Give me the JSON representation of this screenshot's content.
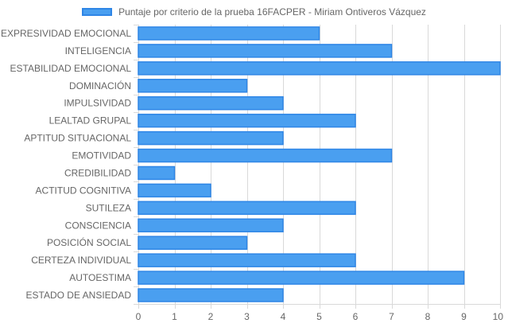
{
  "chart_data": {
    "type": "bar",
    "orientation": "horizontal",
    "legend": {
      "label": "Puntaje por criterio de la prueba 16FACPER - Miriam Ontiveros Vázquez",
      "position": "top"
    },
    "categories": [
      "EXPRESIVIDAD EMOCIONAL",
      "INTELIGENCIA",
      "ESTABILIDAD EMOCIONAL",
      "DOMINACIÓN",
      "IMPULSIVIDAD",
      "LEALTAD GRUPAL",
      "APTITUD SITUACIONAL",
      "EMOTIVIDAD",
      "CREDIBILIDAD",
      "ACTITUD COGNITIVA",
      "SUTILEZA",
      "CONSCIENCIA",
      "POSICIÓN SOCIAL",
      "CERTEZA INDIVIDUAL",
      "AUTOESTIMA",
      "ESTADO DE ANSIEDAD"
    ],
    "series": [
      {
        "name": "Puntaje por criterio de la prueba 16FACPER - Miriam Ontiveros Vázquez",
        "values": [
          5,
          7,
          10,
          3,
          4,
          6,
          4,
          7,
          1,
          2,
          6,
          4,
          3,
          6,
          9,
          4
        ]
      }
    ],
    "xticks": [
      "0",
      "1",
      "2",
      "3",
      "4",
      "5",
      "6",
      "7",
      "8",
      "9",
      "10"
    ],
    "xlim": [
      0,
      10
    ],
    "grid": true,
    "colors": {
      "bar_fill": "#4a9ff0",
      "bar_border": "#2f86e6",
      "grid": "#d9d9d9",
      "text": "#666666"
    }
  }
}
